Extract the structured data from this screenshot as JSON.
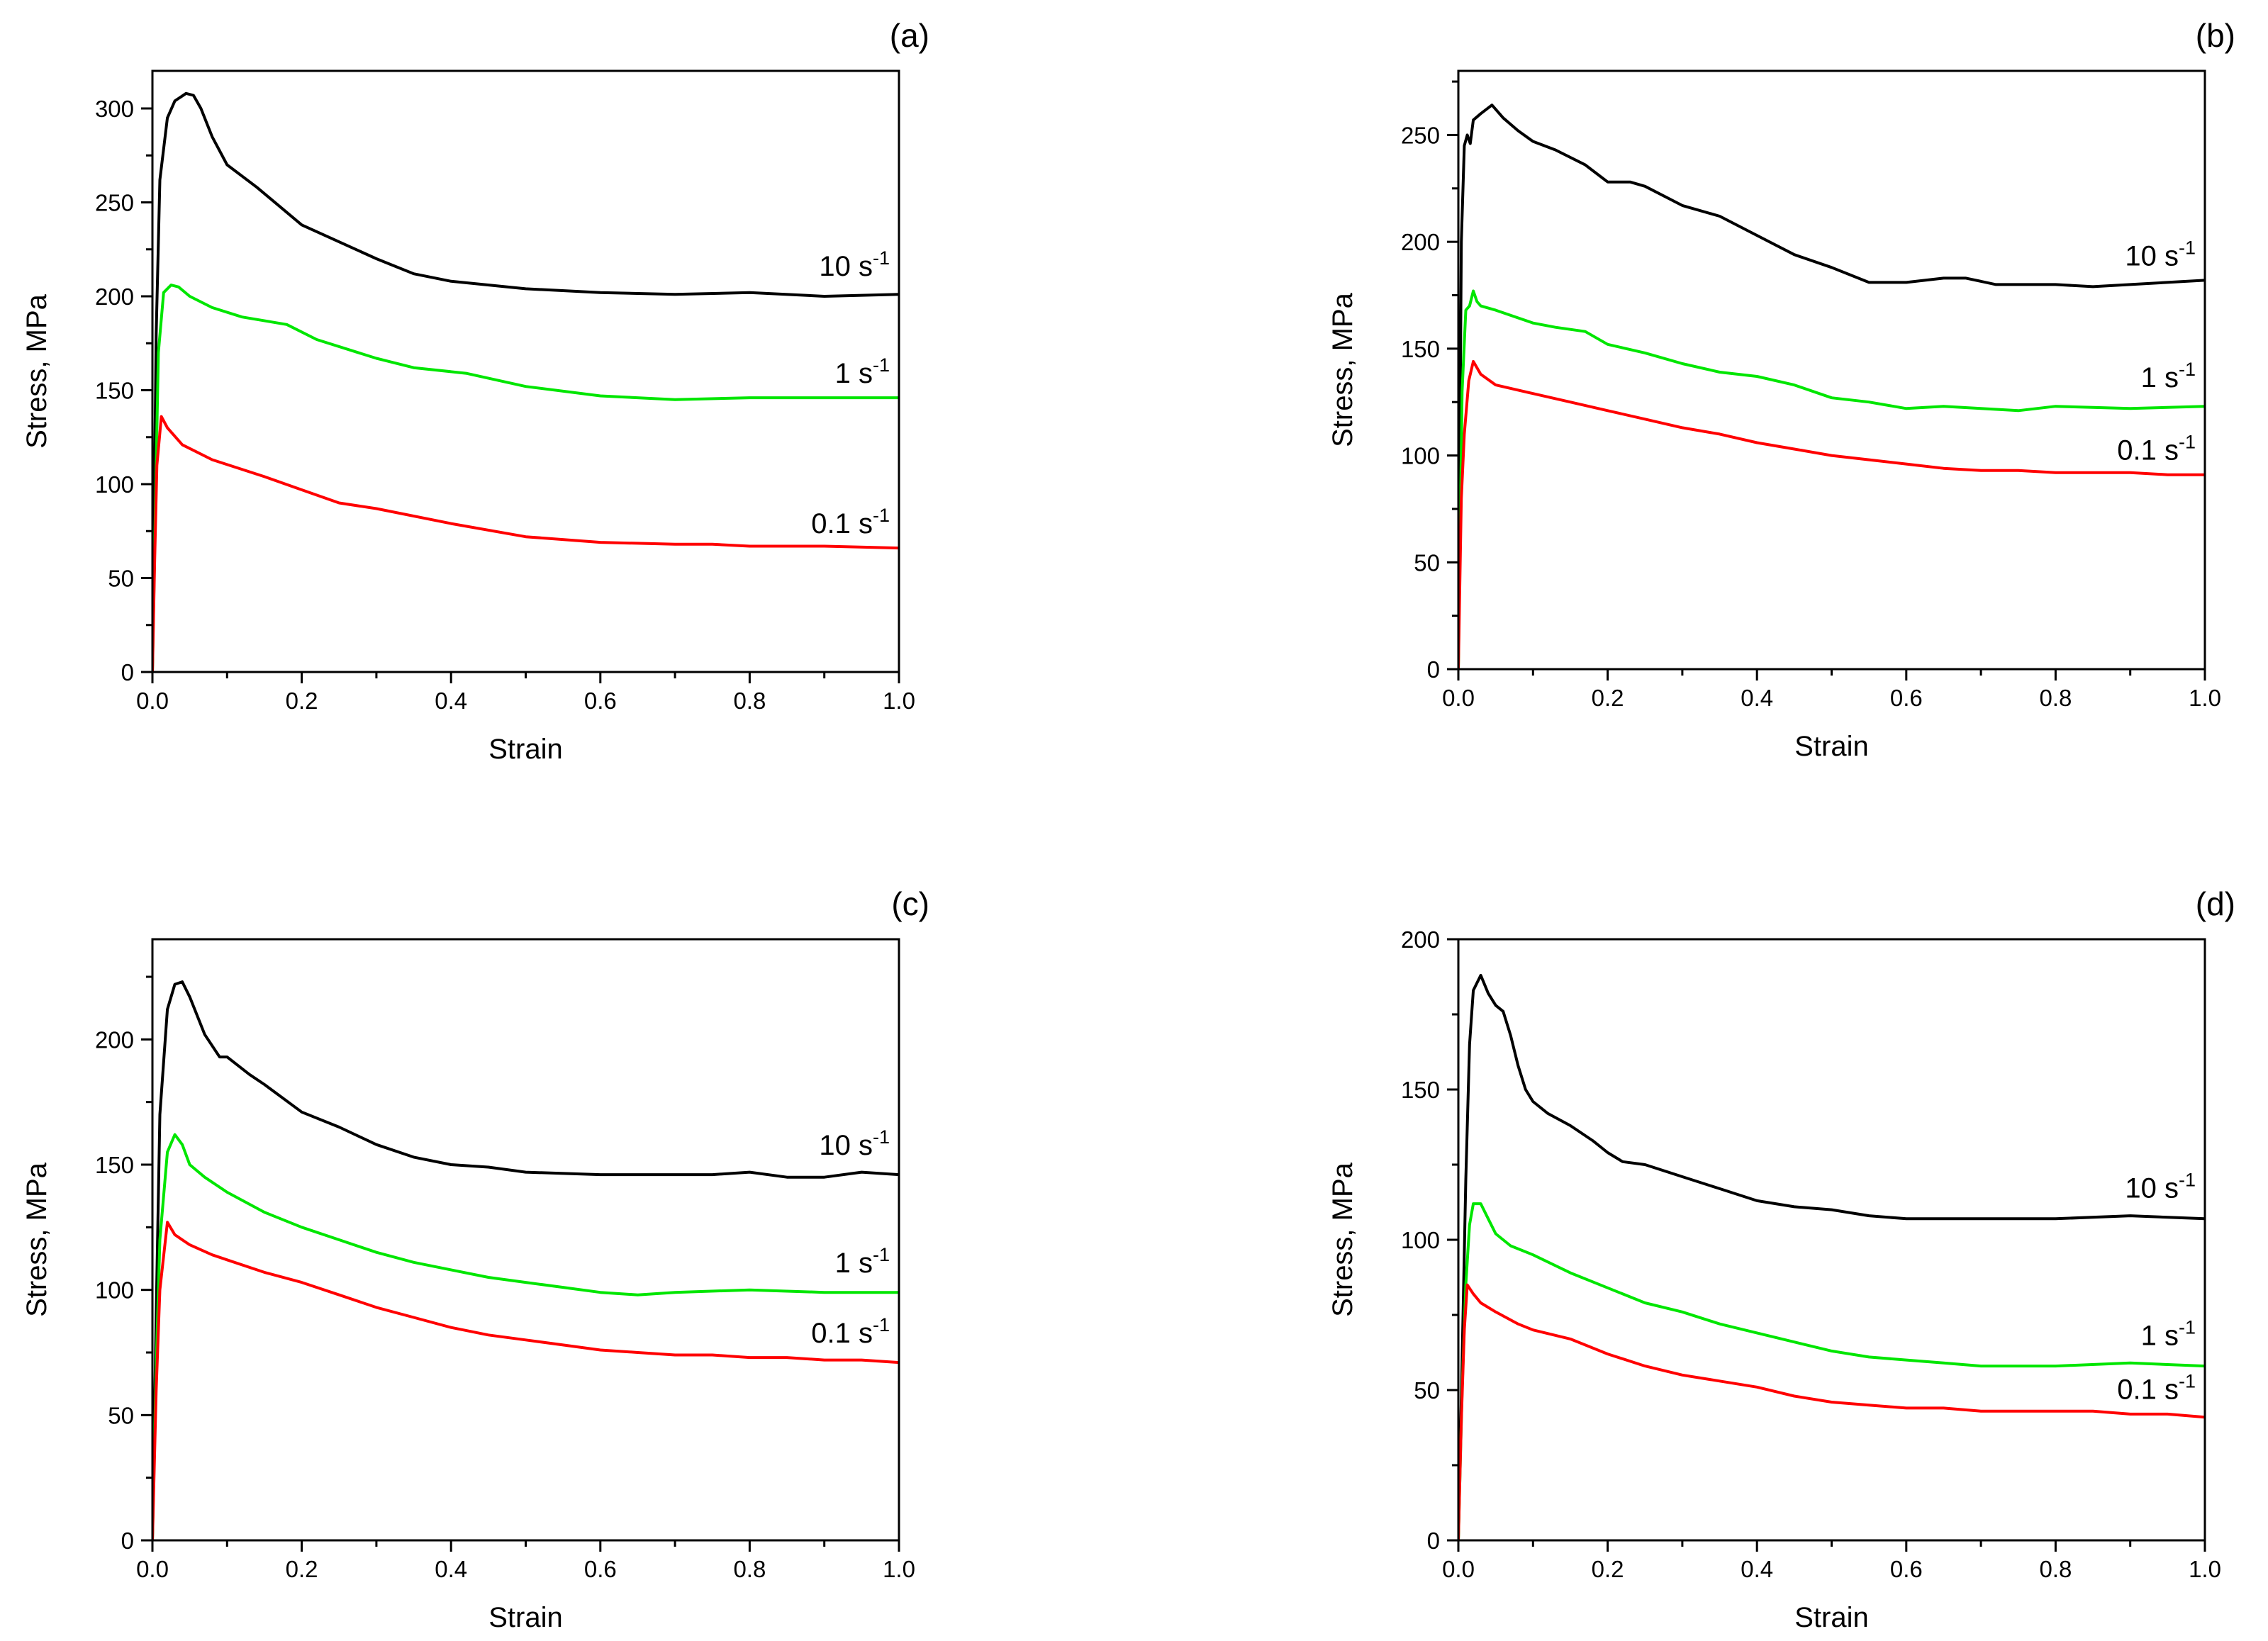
{
  "chart_data": [
    {
      "type": "line",
      "panel_label": "(a)",
      "xlabel": "Strain",
      "ylabel": "Stress, MPa",
      "xlim": [
        0.0,
        1.0
      ],
      "ylim": [
        0,
        320
      ],
      "xticks": [
        "0.0",
        "0.2",
        "0.4",
        "0.6",
        "0.8",
        "1.0"
      ],
      "yticks": [
        "0",
        "50",
        "100",
        "150",
        "200",
        "250",
        "300"
      ],
      "ytick_values": [
        0,
        50,
        100,
        150,
        200,
        250,
        300
      ],
      "series": [
        {
          "name": "10 s-1",
          "label_base": "10 s",
          "label_exp": "-1",
          "color": "#000000",
          "label_at": [
            0.88,
            211
          ],
          "x": [
            0.0,
            0.005,
            0.01,
            0.02,
            0.03,
            0.045,
            0.055,
            0.065,
            0.08,
            0.1,
            0.14,
            0.2,
            0.3,
            0.35,
            0.4,
            0.5,
            0.6,
            0.7,
            0.8,
            0.9,
            1.0
          ],
          "y": [
            0,
            180,
            262,
            295,
            304,
            308,
            307,
            300,
            285,
            270,
            258,
            238,
            220,
            212,
            208,
            204,
            202,
            201,
            202,
            200,
            201
          ]
        },
        {
          "name": "1 s-1",
          "label_base": "1 s",
          "label_exp": "-1",
          "color": "#00e600",
          "label_at": [
            0.88,
            154
          ],
          "x": [
            0.0,
            0.005,
            0.008,
            0.015,
            0.025,
            0.035,
            0.05,
            0.08,
            0.12,
            0.18,
            0.22,
            0.3,
            0.35,
            0.42,
            0.5,
            0.6,
            0.7,
            0.8,
            0.9,
            1.0
          ],
          "y": [
            0,
            110,
            170,
            202,
            206,
            205,
            200,
            194,
            189,
            185,
            177,
            167,
            162,
            159,
            152,
            147,
            145,
            146,
            146,
            146
          ]
        },
        {
          "name": "0.1 s-1",
          "label_base": "0.1 s",
          "label_exp": "-1",
          "color": "#ff0000",
          "label_at": [
            0.88,
            74
          ],
          "x": [
            0.0,
            0.003,
            0.006,
            0.012,
            0.02,
            0.04,
            0.08,
            0.15,
            0.2,
            0.25,
            0.3,
            0.4,
            0.5,
            0.6,
            0.7,
            0.75,
            0.8,
            0.9,
            1.0
          ],
          "y": [
            0,
            60,
            110,
            136,
            130,
            121,
            113,
            104,
            97,
            90,
            87,
            79,
            72,
            69,
            68,
            68,
            67,
            67,
            66
          ]
        }
      ]
    },
    {
      "type": "line",
      "panel_label": "(b)",
      "xlabel": "Strain",
      "ylabel": "Stress, MPa",
      "xlim": [
        0.0,
        1.0
      ],
      "ylim": [
        0,
        280
      ],
      "xticks": [
        "0.0",
        "0.2",
        "0.4",
        "0.6",
        "0.8",
        "1.0"
      ],
      "yticks": [
        "0",
        "50",
        "100",
        "150",
        "200",
        "250"
      ],
      "ytick_values": [
        0,
        50,
        100,
        150,
        200,
        250
      ],
      "series": [
        {
          "name": "10 s-1",
          "label_base": "10 s",
          "label_exp": "-1",
          "color": "#000000",
          "label_at": [
            0.87,
            189
          ],
          "x": [
            0.0,
            0.004,
            0.008,
            0.012,
            0.016,
            0.02,
            0.03,
            0.045,
            0.06,
            0.08,
            0.1,
            0.13,
            0.17,
            0.2,
            0.23,
            0.25,
            0.3,
            0.35,
            0.4,
            0.45,
            0.5,
            0.55,
            0.6,
            0.65,
            0.68,
            0.72,
            0.8,
            0.85,
            0.9,
            1.0
          ],
          "y": [
            0,
            200,
            245,
            250,
            246,
            257,
            260,
            264,
            258,
            252,
            247,
            243,
            236,
            228,
            228,
            226,
            217,
            212,
            203,
            194,
            188,
            181,
            181,
            183,
            183,
            180,
            180,
            179,
            180,
            182
          ]
        },
        {
          "name": "1 s-1",
          "label_base": "1 s",
          "label_exp": "-1",
          "color": "#00e600",
          "label_at": [
            0.87,
            132
          ],
          "x": [
            0.0,
            0.005,
            0.01,
            0.015,
            0.02,
            0.025,
            0.03,
            0.05,
            0.1,
            0.13,
            0.17,
            0.2,
            0.25,
            0.3,
            0.35,
            0.4,
            0.45,
            0.5,
            0.55,
            0.6,
            0.65,
            0.7,
            0.75,
            0.8,
            0.9,
            1.0
          ],
          "y": [
            0,
            130,
            168,
            170,
            177,
            172,
            170,
            168,
            162,
            160,
            158,
            152,
            148,
            143,
            139,
            137,
            133,
            127,
            125,
            122,
            123,
            122,
            121,
            123,
            122,
            123
          ]
        },
        {
          "name": "0.1 s-1",
          "label_base": "0.1 s",
          "label_exp": "-1",
          "color": "#ff0000",
          "label_at": [
            0.87,
            98
          ],
          "x": [
            0.0,
            0.004,
            0.008,
            0.014,
            0.02,
            0.03,
            0.05,
            0.1,
            0.15,
            0.2,
            0.25,
            0.3,
            0.35,
            0.4,
            0.45,
            0.5,
            0.55,
            0.6,
            0.65,
            0.7,
            0.75,
            0.8,
            0.85,
            0.9,
            0.95,
            1.0
          ],
          "y": [
            0,
            80,
            110,
            135,
            144,
            138,
            133,
            129,
            125,
            121,
            117,
            113,
            110,
            106,
            103,
            100,
            98,
            96,
            94,
            93,
            93,
            92,
            92,
            92,
            91,
            91
          ]
        }
      ]
    },
    {
      "type": "line",
      "panel_label": "(c)",
      "xlabel": "Strain",
      "ylabel": "Stress, MPa",
      "xlim": [
        0.0,
        1.0
      ],
      "ylim": [
        0,
        240
      ],
      "xticks": [
        "0.0",
        "0.2",
        "0.4",
        "0.6",
        "0.8",
        "1.0"
      ],
      "yticks": [
        "0",
        "50",
        "100",
        "150",
        "200"
      ],
      "ytick_values": [
        0,
        50,
        100,
        150,
        200
      ],
      "series": [
        {
          "name": "10 s-1",
          "label_base": "10 s",
          "label_exp": "-1",
          "color": "#000000",
          "label_at": [
            0.87,
            154
          ],
          "x": [
            0.0,
            0.005,
            0.01,
            0.02,
            0.03,
            0.04,
            0.05,
            0.07,
            0.09,
            0.1,
            0.13,
            0.15,
            0.2,
            0.25,
            0.3,
            0.35,
            0.4,
            0.45,
            0.5,
            0.6,
            0.7,
            0.75,
            0.8,
            0.85,
            0.9,
            0.95,
            1.0
          ],
          "y": [
            0,
            90,
            170,
            212,
            222,
            223,
            217,
            202,
            193,
            193,
            186,
            182,
            171,
            165,
            158,
            153,
            150,
            149,
            147,
            146,
            146,
            146,
            147,
            145,
            145,
            147,
            146
          ]
        },
        {
          "name": "1 s-1",
          "label_base": "1 s",
          "label_exp": "-1",
          "color": "#00e600",
          "label_at": [
            0.87,
            107
          ],
          "x": [
            0.0,
            0.005,
            0.01,
            0.02,
            0.03,
            0.04,
            0.05,
            0.07,
            0.1,
            0.15,
            0.2,
            0.25,
            0.3,
            0.35,
            0.4,
            0.45,
            0.5,
            0.55,
            0.6,
            0.65,
            0.7,
            0.8,
            0.9,
            1.0
          ],
          "y": [
            0,
            70,
            120,
            155,
            162,
            158,
            150,
            145,
            139,
            131,
            125,
            120,
            115,
            111,
            108,
            105,
            103,
            101,
            99,
            98,
            99,
            100,
            99,
            99
          ]
        },
        {
          "name": "0.1 s-1",
          "label_base": "0.1 s",
          "label_exp": "-1",
          "color": "#ff0000",
          "label_at": [
            0.87,
            79
          ],
          "x": [
            0.0,
            0.005,
            0.01,
            0.02,
            0.03,
            0.05,
            0.08,
            0.1,
            0.15,
            0.2,
            0.25,
            0.3,
            0.35,
            0.4,
            0.45,
            0.5,
            0.55,
            0.6,
            0.65,
            0.7,
            0.75,
            0.8,
            0.85,
            0.9,
            0.95,
            1.0
          ],
          "y": [
            0,
            60,
            100,
            127,
            122,
            118,
            114,
            112,
            107,
            103,
            98,
            93,
            89,
            85,
            82,
            80,
            78,
            76,
            75,
            74,
            74,
            73,
            73,
            72,
            72,
            71
          ]
        }
      ]
    },
    {
      "type": "line",
      "panel_label": "(d)",
      "xlabel": "Strain",
      "ylabel": "Stress, MPa",
      "xlim": [
        0.0,
        1.0
      ],
      "ylim": [
        0,
        200
      ],
      "xticks": [
        "0.0",
        "0.2",
        "0.4",
        "0.6",
        "0.8",
        "1.0"
      ],
      "yticks": [
        "0",
        "50",
        "100",
        "150",
        "200"
      ],
      "ytick_values": [
        0,
        50,
        100,
        150,
        200
      ],
      "series": [
        {
          "name": "10 s-1",
          "label_base": "10 s",
          "label_exp": "-1",
          "color": "#000000",
          "label_at": [
            0.87,
            114
          ],
          "x": [
            0.0,
            0.005,
            0.01,
            0.015,
            0.02,
            0.03,
            0.04,
            0.05,
            0.06,
            0.07,
            0.08,
            0.09,
            0.1,
            0.12,
            0.15,
            0.18,
            0.2,
            0.22,
            0.25,
            0.3,
            0.35,
            0.4,
            0.45,
            0.5,
            0.55,
            0.6,
            0.65,
            0.7,
            0.8,
            0.9,
            1.0
          ],
          "y": [
            0,
            60,
            120,
            165,
            183,
            188,
            182,
            178,
            176,
            168,
            158,
            150,
            146,
            142,
            138,
            133,
            129,
            126,
            125,
            121,
            117,
            113,
            111,
            110,
            108,
            107,
            107,
            107,
            107,
            108,
            107
          ]
        },
        {
          "name": "1 s-1",
          "label_base": "1 s",
          "label_exp": "-1",
          "color": "#00e600",
          "label_at": [
            0.87,
            65
          ],
          "x": [
            0.0,
            0.005,
            0.01,
            0.015,
            0.02,
            0.03,
            0.04,
            0.05,
            0.07,
            0.1,
            0.15,
            0.2,
            0.25,
            0.3,
            0.35,
            0.4,
            0.45,
            0.5,
            0.55,
            0.6,
            0.65,
            0.7,
            0.8,
            0.9,
            1.0
          ],
          "y": [
            0,
            50,
            85,
            105,
            112,
            112,
            107,
            102,
            98,
            95,
            89,
            84,
            79,
            76,
            72,
            69,
            66,
            63,
            61,
            60,
            59,
            58,
            58,
            59,
            58
          ]
        },
        {
          "name": "0.1 s-1",
          "label_base": "0.1 s",
          "label_exp": "-1",
          "color": "#ff0000",
          "label_at": [
            0.87,
            47
          ],
          "x": [
            0.0,
            0.004,
            0.008,
            0.012,
            0.02,
            0.03,
            0.05,
            0.08,
            0.1,
            0.15,
            0.2,
            0.25,
            0.3,
            0.35,
            0.4,
            0.45,
            0.5,
            0.55,
            0.6,
            0.65,
            0.7,
            0.75,
            0.8,
            0.85,
            0.9,
            0.95,
            1.0
          ],
          "y": [
            0,
            40,
            70,
            85,
            82,
            79,
            76,
            72,
            70,
            67,
            62,
            58,
            55,
            53,
            51,
            48,
            46,
            45,
            44,
            44,
            43,
            43,
            43,
            43,
            42,
            42,
            41
          ]
        }
      ]
    }
  ]
}
